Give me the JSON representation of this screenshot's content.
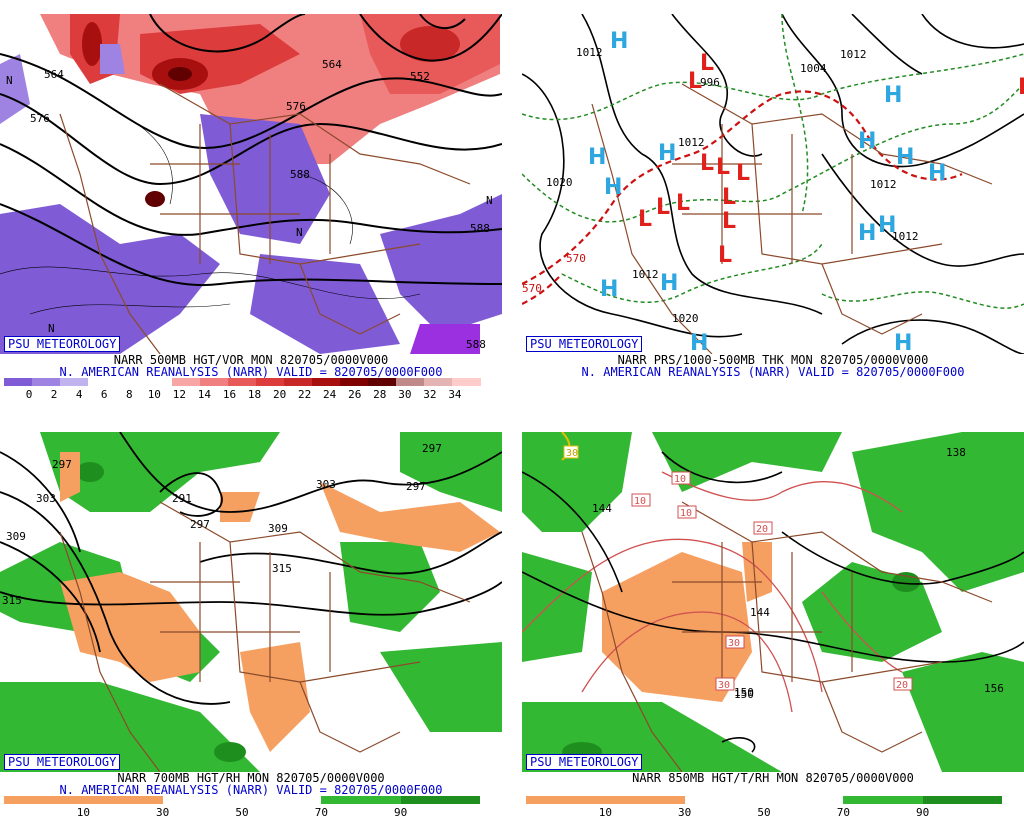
{
  "panels": [
    {
      "brand": "PSU METEOROLOGY",
      "title": "NARR 500MB HGT/VOR MON 820705/0000V000",
      "subtitle": "N. AMERICAN REANALYSIS (NARR) VALID = 820705/0000F000",
      "contour_labels": [
        "564",
        "576",
        "588",
        "552",
        "564",
        "576",
        "588",
        "588",
        "N",
        "N",
        "N",
        "N"
      ],
      "colorbar": {
        "ticks": [
          "0",
          "2",
          "4",
          "6",
          "8",
          "10",
          "12",
          "14",
          "16",
          "18",
          "20",
          "22",
          "24",
          "26",
          "28",
          "30",
          "32",
          "34"
        ],
        "colors": [
          "#7f5bd6",
          "#9f83e2",
          "#c1b3ee",
          "#ffffff",
          "#ffffff",
          "#ffffff",
          "#f7a5a5",
          "#f08080",
          "#e85a5a",
          "#dc3c3c",
          "#c82828",
          "#a81010",
          "#800000",
          "#600000",
          "#c08a8a",
          "#e4b3b3",
          "#ffcccc"
        ]
      }
    },
    {
      "brand": "PSU METEOROLOGY",
      "title": "NARR PRS/1000-500MB THK MON 820705/0000V000",
      "subtitle": "N. AMERICAN REANALYSIS (NARR) VALID = 820705/0000F000",
      "contour_labels": [
        "1012",
        "996",
        "1004",
        "1012",
        "1020",
        "1012",
        "1012",
        "1012",
        "1012",
        "1020",
        "570",
        "570"
      ],
      "highs": 14,
      "lows": 12
    },
    {
      "brand": "PSU METEOROLOGY",
      "title": "NARR 700MB HGT/RH MON 820705/0000V000",
      "subtitle": "N. AMERICAN REANALYSIS (NARR) VALID = 820705/0000F000",
      "contour_labels": [
        "297",
        "303",
        "309",
        "291",
        "297",
        "303",
        "309",
        "315",
        "315",
        "297",
        "297"
      ],
      "colorbar": {
        "ticks": [
          "10",
          "30",
          "50",
          "70",
          "90"
        ],
        "colors": [
          "#f5a061",
          "#f5a061",
          "#ffffff",
          "#ffffff",
          "#33b833",
          "#1e8f1e"
        ]
      }
    },
    {
      "brand": "PSU METEOROLOGY",
      "title": "NARR 850MB HGT/T/RH MON 820705/0000V000",
      "subtitle": "",
      "contour_labels": [
        "144",
        "150",
        "156",
        "144",
        "150",
        "138",
        "10",
        "10",
        "10",
        "20",
        "30",
        "30",
        "20",
        "30"
      ],
      "colorbar": {
        "ticks": [
          "10",
          "30",
          "50",
          "70",
          "90"
        ],
        "colors": [
          "#f5a061",
          "#f5a061",
          "#ffffff",
          "#ffffff",
          "#33b833",
          "#1e8f1e"
        ]
      }
    }
  ]
}
